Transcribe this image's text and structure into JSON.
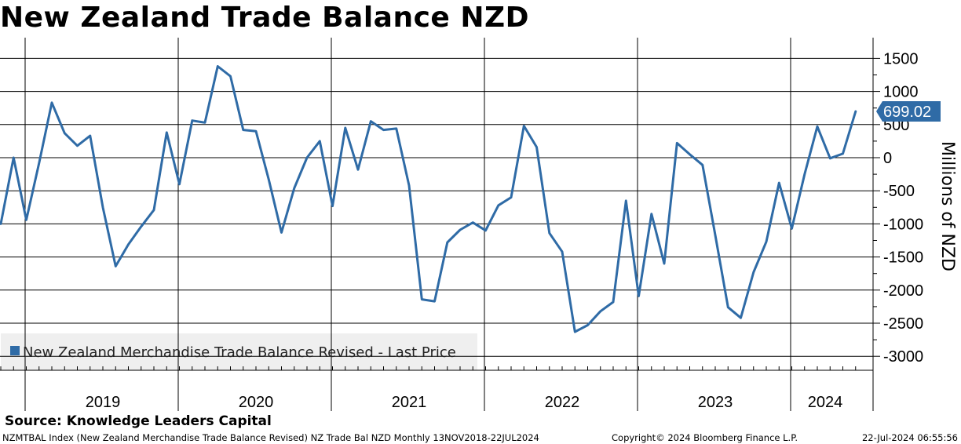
{
  "title": "New Zealand Trade Balance NZD",
  "source": "Source: Knowledge Leaders Capital",
  "footer": {
    "left": "NZMTBAL Index (New Zealand Merchandise Trade Balance Revised) NZ Trade Bal NZD  Monthly 13NOV2018-22JUL2024",
    "middle": "Copyright© 2024 Bloomberg Finance L.P.",
    "right": "22-Jul-2024 06:55:56"
  },
  "colors": {
    "series": "#2f6ba6",
    "last_price_badge": "#2f6ba6",
    "legend_background": "#efefef",
    "grid": "#000000"
  },
  "chart_data": {
    "type": "line",
    "title": "New Zealand Trade Balance NZD",
    "ylabel": "Millions of NZD",
    "ylim": [
      -3100,
      1750
    ],
    "yticks": [
      1500,
      1000,
      500,
      0,
      -500,
      -1000,
      -1500,
      -2000,
      -2500,
      -3000
    ],
    "ytick_labels": [
      "1500",
      "1000",
      "500",
      "0",
      "-500",
      "-1000",
      "-1500",
      "-2000",
      "-2500",
      "-3000"
    ],
    "year_labels": [
      "2019",
      "2020",
      "2021",
      "2022",
      "2023",
      "2024"
    ],
    "last_price_label": "699.02",
    "legend": "New Zealand Merchandise Trade Balance Revised - Last Price",
    "legend_position": "bottom-left",
    "grid": true,
    "series": [
      {
        "name": "New Zealand Merchandise Trade Balance Revised - Last Price",
        "frequency": "monthly",
        "start": "2018-11",
        "end": "2024-06",
        "values": [
          -1000,
          0,
          -940,
          -80,
          830,
          370,
          180,
          330,
          -750,
          -1640,
          -1310,
          -1040,
          -790,
          380,
          -400,
          560,
          530,
          1380,
          1230,
          420,
          400,
          -330,
          -1130,
          -460,
          0,
          250,
          -730,
          450,
          -180,
          550,
          420,
          440,
          -420,
          -2140,
          -2170,
          -1280,
          -1090,
          -980,
          -1100,
          -720,
          -600,
          480,
          160,
          -1140,
          -1420,
          -2630,
          -2530,
          -2320,
          -2180,
          -650,
          -2090,
          -850,
          -1600,
          220,
          50,
          -110,
          -1170,
          -2260,
          -2420,
          -1730,
          -1270,
          -380,
          -1070,
          -250,
          470,
          -10,
          60,
          699.02
        ]
      }
    ]
  }
}
